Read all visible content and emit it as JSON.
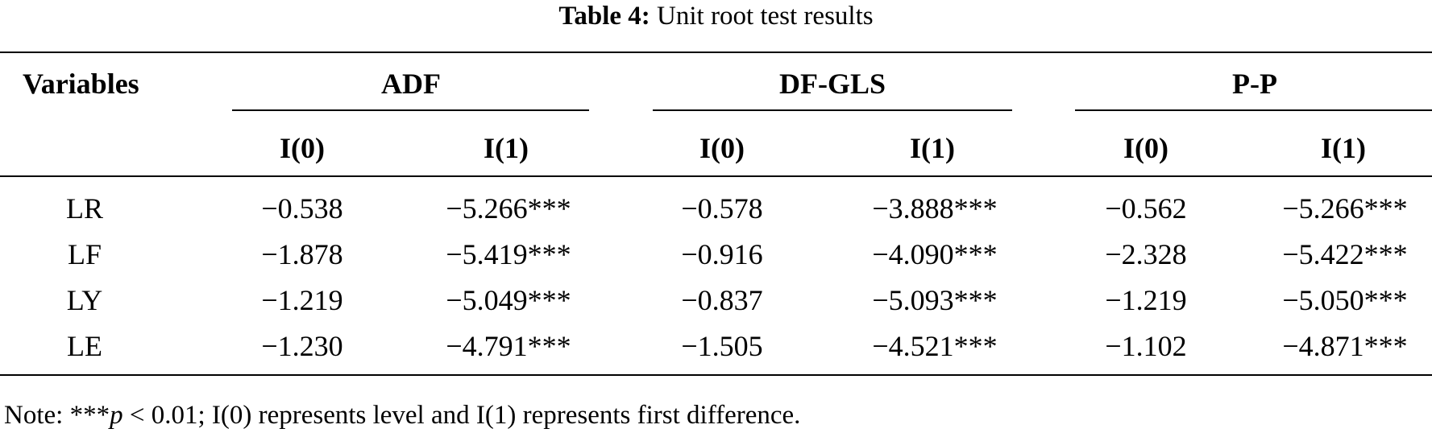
{
  "caption": {
    "label": "Table 4:",
    "title": "Unit root test results"
  },
  "table": {
    "stub_header": "Variables",
    "groups": [
      {
        "name": "ADF",
        "subcolumns": [
          "I(0)",
          "I(1)"
        ]
      },
      {
        "name": "DF-GLS",
        "subcolumns": [
          "I(0)",
          "I(1)"
        ]
      },
      {
        "name": "P-P",
        "subcolumns": [
          "I(0)",
          "I(1)"
        ]
      }
    ],
    "rows": [
      {
        "variable": "LR",
        "values": [
          "−0.538",
          "−5.266***",
          "−0.578",
          "−3.888***",
          "−0.562",
          "−5.266***"
        ]
      },
      {
        "variable": "LF",
        "values": [
          "−1.878",
          "−5.419***",
          "−0.916",
          "−4.090***",
          "−2.328",
          "−5.422***"
        ]
      },
      {
        "variable": "LY",
        "values": [
          "−1.219",
          "−5.049***",
          "−0.837",
          "−5.093***",
          "−1.219",
          "−5.050***"
        ]
      },
      {
        "variable": "LE",
        "values": [
          "−1.230",
          "−4.791***",
          "−1.505",
          "−4.521***",
          "−1.102",
          "−4.871***"
        ]
      }
    ]
  },
  "note": {
    "prefix": "Note: ***",
    "p_symbol": "p",
    "rest": " < 0.01; I(0) represents level and I(1) represents first difference."
  }
}
